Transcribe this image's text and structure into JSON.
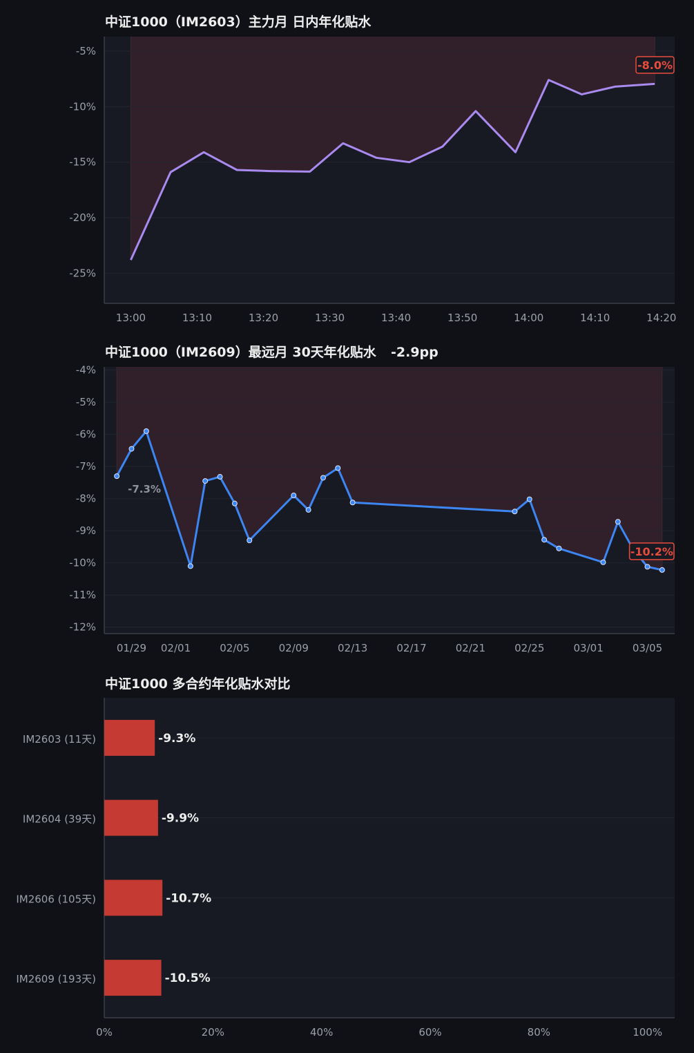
{
  "colors": {
    "background": "#101116",
    "panel": "#181a23",
    "grid": "#22252f",
    "axis": "#3b3e48",
    "text": "#eeeeee",
    "tick": "#9aa0ab",
    "shade": "#33202a",
    "line_intraday": "#a98bf0",
    "line_30d": "#3d86f2",
    "bar": "#c53a33",
    "negative": "#e74c3c"
  },
  "chart_data": [
    {
      "type": "line",
      "title": "中证1000（IM2603）主力月 日内年化贴水",
      "x": [
        "13:00",
        "13:06",
        "13:11",
        "13:16",
        "13:21",
        "13:27",
        "13:32",
        "13:37",
        "13:42",
        "13:47",
        "13:52",
        "13:58",
        "14:03",
        "14:08",
        "14:13",
        "14:19"
      ],
      "values": [
        -23.8,
        -15.9,
        -14.1,
        -15.7,
        -15.8,
        -15.85,
        -13.3,
        -14.6,
        -15.0,
        -13.6,
        -10.4,
        -14.1,
        -7.6,
        -8.9,
        -8.2,
        -7.95
      ],
      "xticks": [
        "13:00",
        "13:10",
        "13:20",
        "13:30",
        "13:40",
        "13:50",
        "14:00",
        "14:10",
        "14:20"
      ],
      "yticks": [
        "-5%",
        "-10%",
        "-15%",
        "-20%",
        "-25%"
      ],
      "ylim": [
        -27.7,
        -3.7
      ],
      "last_label": "-8.0%",
      "shade": "positive-span"
    },
    {
      "type": "line",
      "title": "中证1000（IM2609）最远月 30天年化贴水",
      "subtitle": "-2.9pp",
      "x": [
        "01/28",
        "01/29",
        "01/30",
        "02/02",
        "02/03",
        "02/04",
        "02/05",
        "02/06",
        "02/09",
        "02/10",
        "02/11",
        "02/12",
        "02/13",
        "02/24",
        "02/25",
        "02/26",
        "02/27",
        "03/02",
        "03/03",
        "03/04",
        "03/05",
        "03/06"
      ],
      "values": [
        -7.3,
        -6.45,
        -5.9,
        -10.1,
        -7.45,
        -7.32,
        -8.15,
        -9.3,
        -7.9,
        -8.35,
        -7.35,
        -7.05,
        -8.12,
        -8.4,
        -8.02,
        -9.28,
        -9.55,
        -9.98,
        -8.72,
        -9.55,
        -10.12,
        -10.22
      ],
      "xticks": [
        "01/29",
        "02/01",
        "02/05",
        "02/09",
        "02/13",
        "02/17",
        "02/21",
        "02/25",
        "03/01",
        "03/05"
      ],
      "yticks": [
        "-4%",
        "-5%",
        "-6%",
        "-7%",
        "-8%",
        "-9%",
        "-10%",
        "-11%",
        "-12%"
      ],
      "ylim": [
        -12.2,
        -3.9
      ],
      "first_label": "-7.3%",
      "last_label": "-10.2%",
      "shade": "positive-span"
    },
    {
      "type": "bar",
      "orientation": "horizontal",
      "title": "中证1000 多合约年化贴水对比",
      "categories": [
        "IM2603 (11天)",
        "IM2604 (39天)",
        "IM2606 (105天)",
        "IM2609 (193天)"
      ],
      "values": [
        9.3,
        9.9,
        10.7,
        10.5
      ],
      "labels": [
        "-9.3%",
        "-9.9%",
        "-10.7%",
        "-10.5%"
      ],
      "xticks": [
        "0%",
        "20%",
        "40%",
        "60%",
        "80%",
        "100%"
      ],
      "xlim": [
        0,
        105
      ]
    }
  ]
}
